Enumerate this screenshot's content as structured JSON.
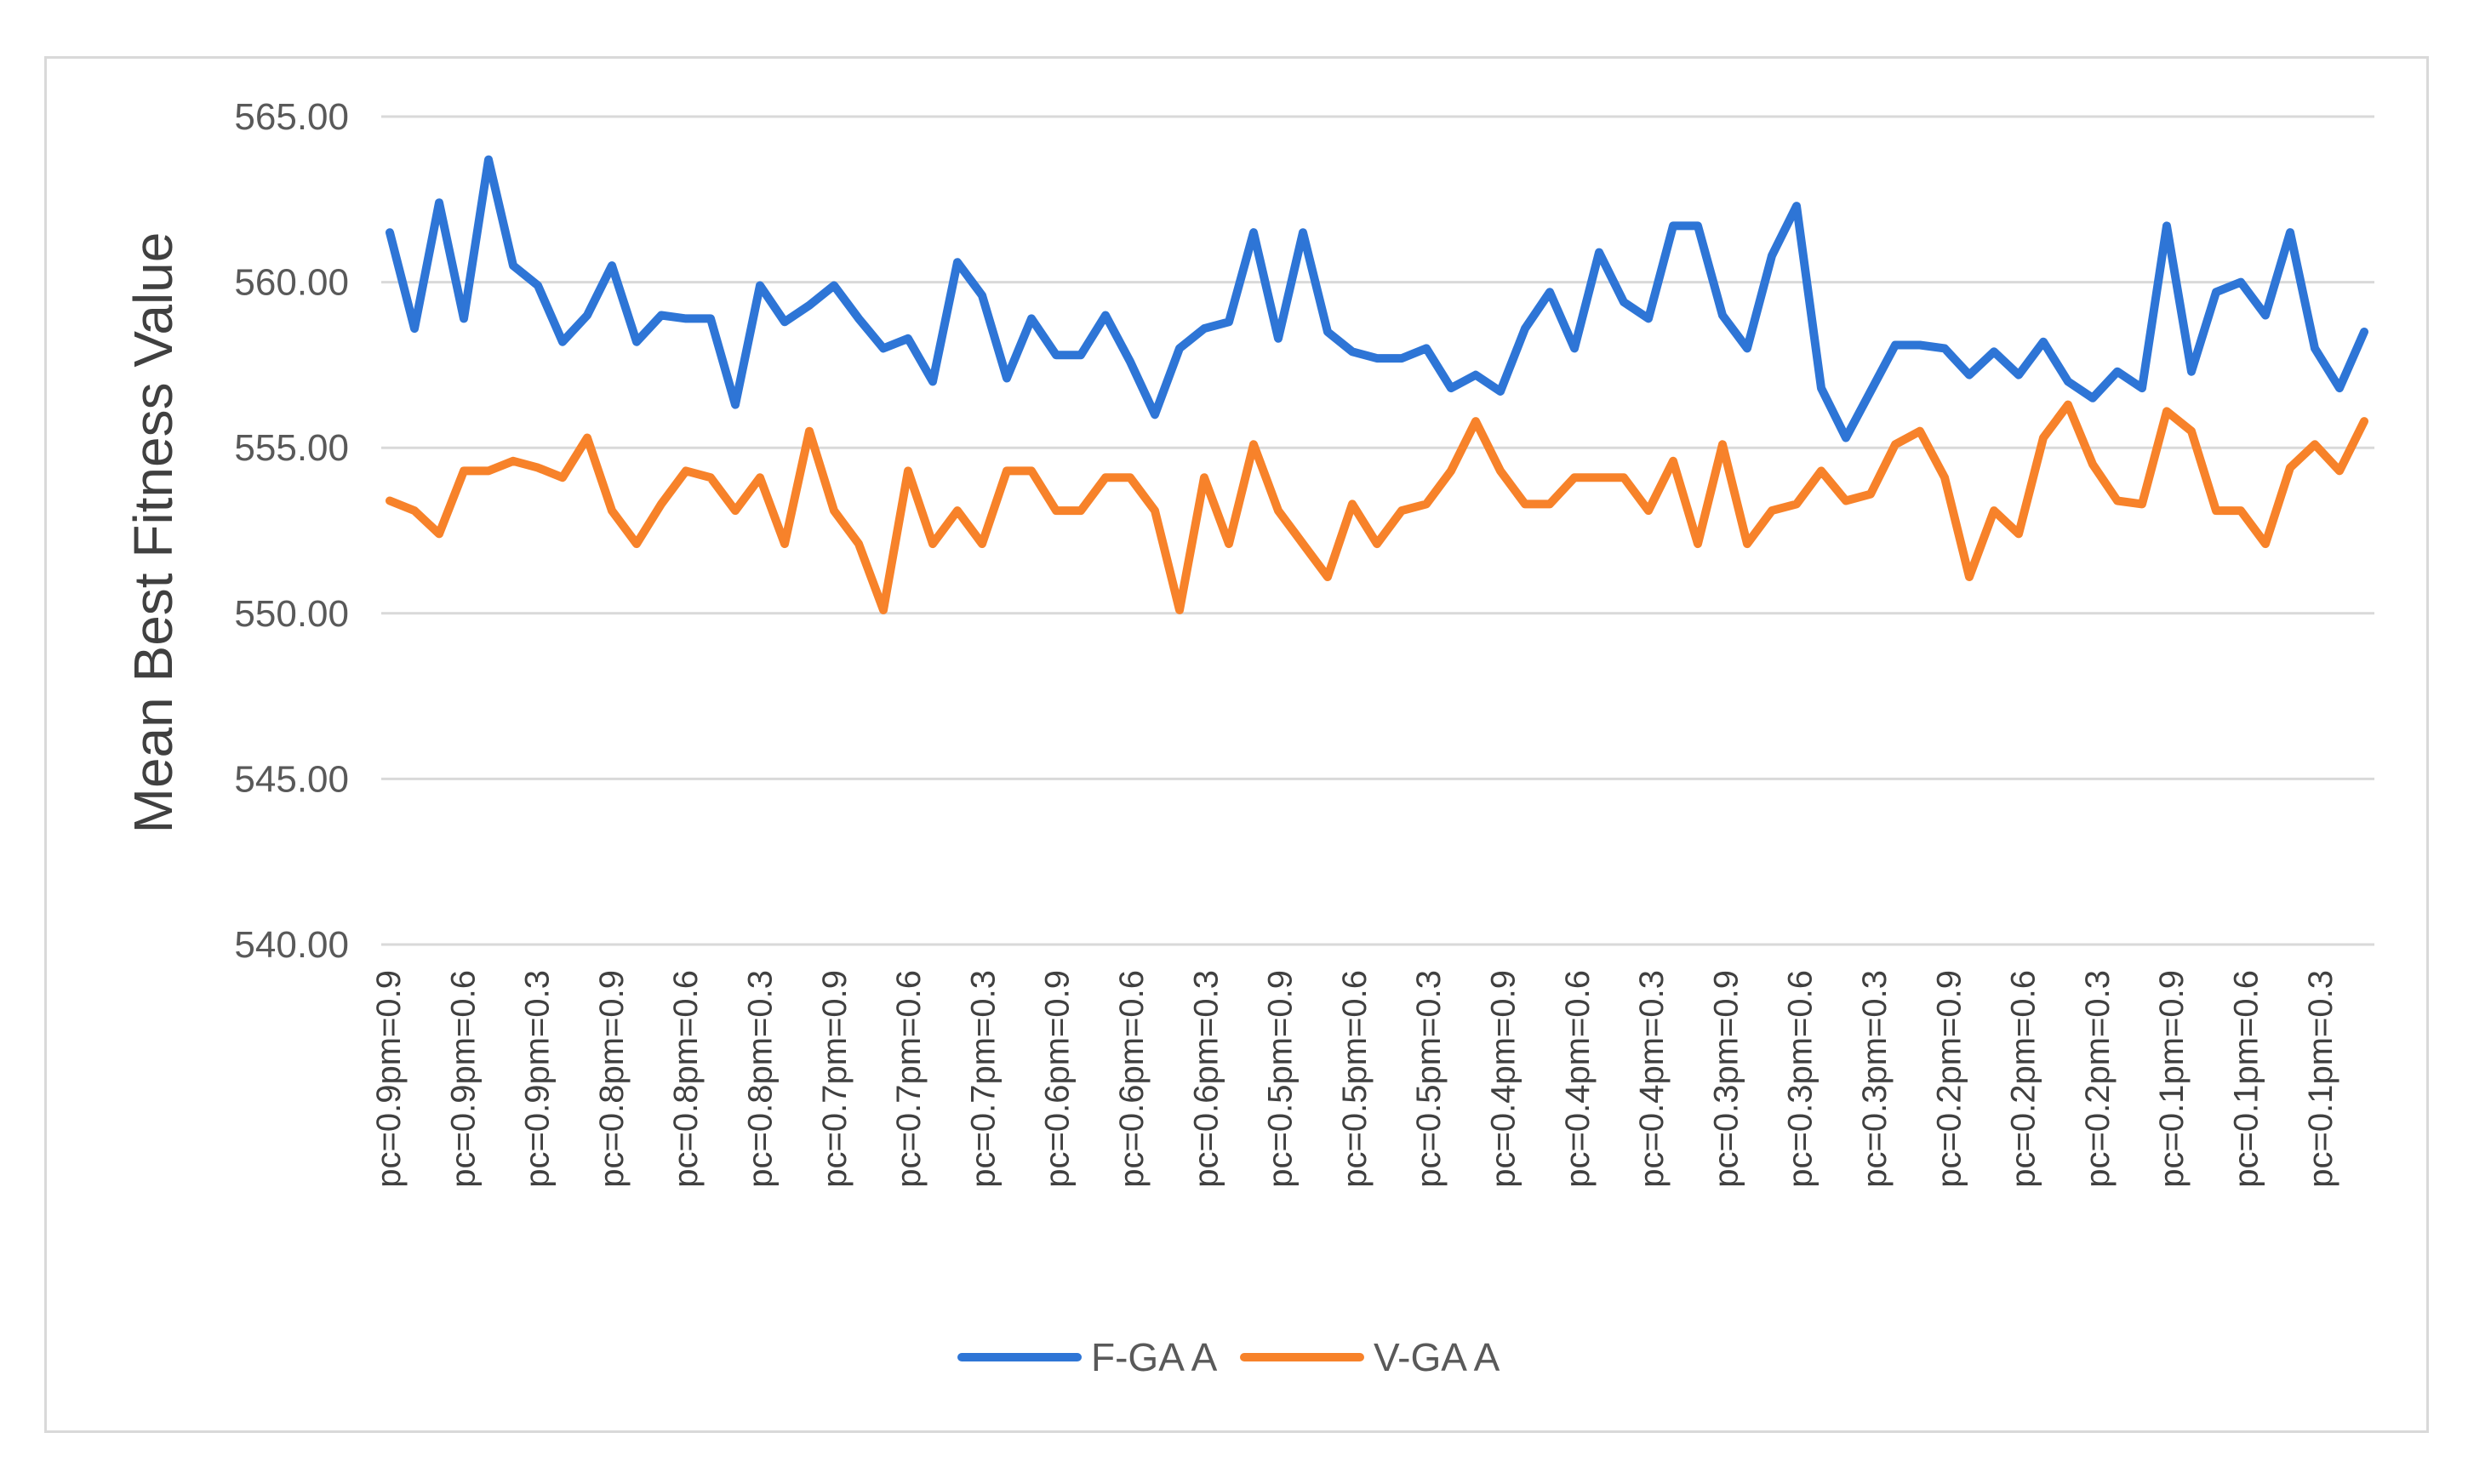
{
  "chart_data": {
    "type": "line",
    "title": "",
    "xlabel": "",
    "ylabel": "Mean  Best Fitness Value",
    "ylim": [
      540,
      565
    ],
    "yticks": [
      540,
      545,
      550,
      555,
      560,
      565
    ],
    "ytick_labels": [
      "540.00",
      "545.00",
      "550.00",
      "555.00",
      "560.00",
      "565.00"
    ],
    "grid": true,
    "legend_position": "bottom",
    "x_tick_labels": [
      "pc=0.9pm=0.9",
      "pc=0.9pm=0.6",
      "pc=0.9pm=0.3",
      "pc=0.8pm=0.9",
      "pc=0.8pm=0.6",
      "pc=0.8pm=0.3",
      "pc=0.7pm=0.9",
      "pc=0.7pm=0.6",
      "pc=0.7pm=0.3",
      "pc=0.6pm=0.9",
      "pc=0.6pm=0.6",
      "pc=0.6pm=0.3",
      "pc=0.5pm=0.9",
      "pc=0.5pm=0.6",
      "pc=0.5pm=0.3",
      "pc=0.4pm=0.9",
      "pc=0.4pm=0.6",
      "pc=0.4pm=0.3",
      "pc=0.3pm=0.9",
      "pc=0.3pm=0.6",
      "pc=0.3pm=0.3",
      "pc=0.2pm=0.9",
      "pc=0.2pm=0.6",
      "pc=0.2pm=0.3",
      "pc=0.1pm=0.9",
      "pc=0.1pm=0.6",
      "pc=0.1pm=0.3"
    ],
    "series": [
      {
        "name": "F-GA A",
        "color": "#2E75D6",
        "values": [
          561.5,
          558.6,
          562.4,
          558.9,
          563.7,
          560.5,
          559.9,
          558.2,
          559.0,
          560.5,
          558.2,
          559.0,
          558.9,
          558.9,
          556.3,
          559.9,
          558.8,
          559.3,
          559.9,
          558.9,
          558.0,
          558.3,
          557.0,
          560.6,
          559.6,
          557.1,
          558.9,
          557.8,
          557.8,
          559.0,
          557.6,
          556.0,
          558.0,
          558.6,
          558.8,
          561.5,
          558.3,
          561.5,
          558.5,
          557.9,
          557.7,
          557.7,
          558.0,
          556.8,
          557.2,
          556.7,
          558.6,
          559.7,
          558.0,
          560.9,
          559.4,
          558.9,
          561.7,
          561.7,
          559.0,
          558.0,
          560.8,
          562.3,
          556.8,
          555.3,
          556.7,
          558.1,
          558.1,
          558.0,
          557.2,
          557.9,
          557.2,
          558.2,
          557.0,
          556.5,
          557.3,
          556.8,
          561.7,
          557.3,
          559.7,
          560.0,
          559.0,
          561.5,
          558.0,
          556.8,
          558.5
        ]
      },
      {
        "name": "V-GA A",
        "color": "#F7822A",
        "values": [
          553.4,
          553.1,
          552.4,
          554.3,
          554.3,
          554.6,
          554.4,
          554.1,
          555.3,
          553.1,
          552.1,
          553.3,
          554.3,
          554.1,
          553.1,
          554.1,
          552.1,
          555.5,
          553.1,
          552.1,
          550.1,
          554.3,
          552.1,
          553.1,
          552.1,
          554.3,
          554.3,
          553.1,
          553.1,
          554.1,
          554.1,
          553.1,
          550.1,
          554.1,
          552.1,
          555.1,
          553.1,
          552.1,
          551.1,
          553.3,
          552.1,
          553.1,
          553.3,
          554.3,
          555.8,
          554.3,
          553.3,
          553.3,
          554.1,
          554.1,
          554.1,
          553.1,
          554.6,
          552.1,
          555.1,
          552.1,
          553.1,
          553.3,
          554.3,
          553.4,
          553.6,
          555.1,
          555.5,
          554.1,
          551.1,
          553.1,
          552.4,
          555.3,
          556.3,
          554.5,
          553.4,
          553.3,
          556.1,
          555.5,
          553.1,
          553.1,
          552.1,
          554.4,
          555.1,
          554.3,
          555.8
        ]
      }
    ]
  }
}
